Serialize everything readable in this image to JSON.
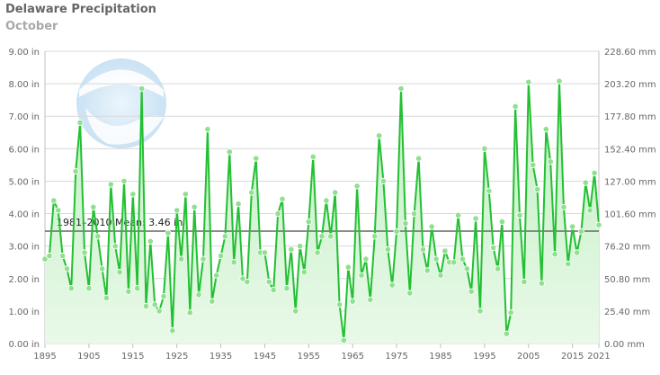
{
  "header": {
    "title": "Delaware Precipitation",
    "subtitle": "October"
  },
  "chart_data": {
    "type": "area",
    "title": "Delaware Precipitation",
    "subtitle": "October",
    "x_start": 1895,
    "x_end": 2021,
    "x_ticks": [
      1895,
      1905,
      1915,
      1925,
      1935,
      1945,
      1955,
      1965,
      1975,
      1985,
      1995,
      2005,
      2015,
      2021
    ],
    "y_left_ticks": [
      "0.00 in",
      "1.00 in",
      "2.00 in",
      "3.00 in",
      "4.00 in",
      "5.00 in",
      "6.00 in",
      "7.00 in",
      "8.00 in",
      "9.00 in"
    ],
    "y_right_ticks": [
      "0.00 mm",
      "25.40 mm",
      "50.80 mm",
      "76.20 mm",
      "101.60 mm",
      "127.00 mm",
      "152.40 mm",
      "177.80 mm",
      "203.20 mm",
      "228.60 mm"
    ],
    "ylim": [
      0,
      9
    ],
    "mean": {
      "value": 3.46,
      "label": "1981–2010 Mean: 3.46 in"
    },
    "series": [
      {
        "values": [
          2.6,
          2.7,
          4.4,
          4.1,
          2.7,
          2.3,
          1.7,
          5.3,
          6.8,
          2.8,
          1.7,
          4.2,
          3.3,
          2.3,
          1.4,
          4.9,
          3.0,
          2.2,
          5.0,
          1.6,
          4.6,
          1.7,
          7.85,
          1.15,
          3.15,
          1.2,
          1.0,
          1.45,
          3.4,
          0.4,
          4.1,
          2.6,
          4.6,
          0.95,
          4.2,
          1.5,
          2.6,
          6.6,
          1.3,
          2.1,
          2.7,
          3.3,
          5.9,
          2.5,
          4.3,
          2.0,
          1.9,
          4.65,
          5.7,
          2.8,
          2.8,
          1.9,
          1.65,
          4.0,
          4.45,
          1.7,
          2.9,
          1.0,
          3.0,
          2.2,
          3.75,
          5.75,
          2.8,
          3.3,
          4.4,
          3.3,
          4.65,
          1.2,
          0.1,
          2.35,
          1.3,
          4.85,
          2.1,
          2.6,
          1.35,
          3.3,
          6.4,
          5.0,
          2.9,
          1.8,
          3.45,
          7.85,
          3.7,
          1.55,
          4.0,
          5.7,
          2.9,
          2.25,
          3.6,
          2.6,
          2.1,
          2.85,
          2.5,
          2.5,
          3.95,
          2.6,
          2.3,
          1.6,
          3.85,
          1.0,
          6.0,
          4.7,
          2.95,
          2.3,
          3.75,
          0.3,
          0.95,
          7.3,
          3.95,
          1.9,
          8.05,
          5.5,
          4.75,
          1.85,
          6.6,
          5.6,
          2.75,
          8.08,
          4.2,
          2.45,
          3.6,
          2.8,
          3.45,
          4.95,
          4.1,
          5.25,
          3.65
        ]
      }
    ],
    "colors": {
      "line": "#22c032",
      "area_top": "#bfefc0",
      "area_bottom": "#e9f9e9",
      "mean_line": "#666666",
      "grid": "#d8d8d8"
    },
    "grid": true
  }
}
